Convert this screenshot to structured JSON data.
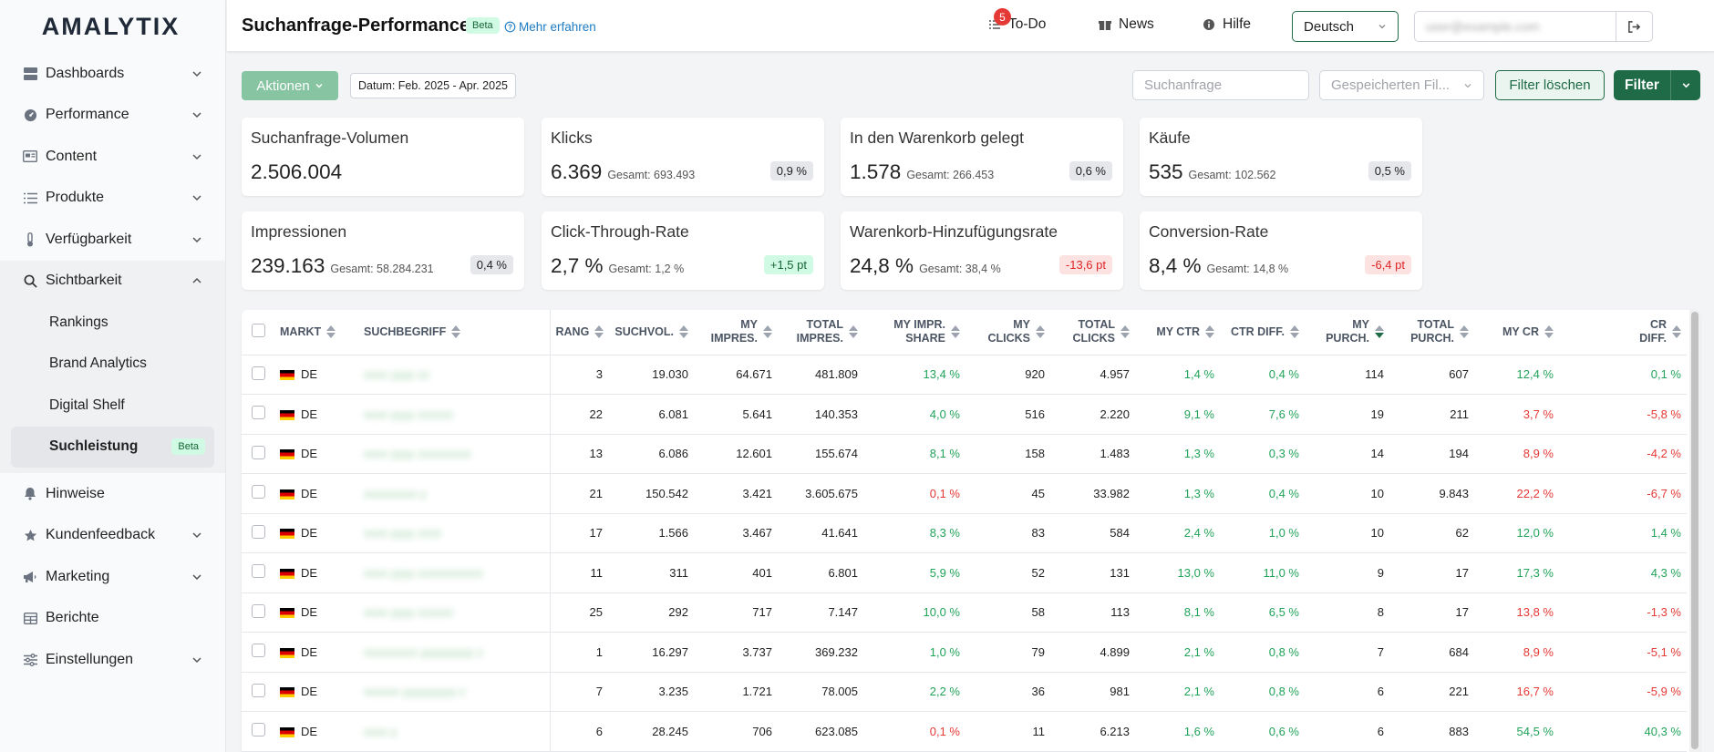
{
  "app": {
    "logo": "AMALYTIX",
    "page_title": "Suchanfrage-Performance",
    "beta": "Beta",
    "learn_more": "Mehr erfahren"
  },
  "topbar": {
    "todo_label": "To-Do",
    "todo_count": "5",
    "news_label": "News",
    "help_label": "Hilfe",
    "language": "Deutsch",
    "user_email": "user@example.com"
  },
  "sidebar": {
    "items": [
      {
        "label": "Dashboards",
        "icon": "dashboard-icon"
      },
      {
        "label": "Performance",
        "icon": "performance-icon"
      },
      {
        "label": "Content",
        "icon": "content-icon"
      },
      {
        "label": "Produkte",
        "icon": "list-icon"
      },
      {
        "label": "Verfügbarkeit",
        "icon": "thermometer-icon"
      },
      {
        "label": "Sichtbarkeit",
        "icon": "search-icon"
      }
    ],
    "sub_items": [
      {
        "label": "Rankings"
      },
      {
        "label": "Brand Analytics"
      },
      {
        "label": "Digital Shelf"
      },
      {
        "label": "Suchleistung",
        "badge": "Beta"
      }
    ],
    "bottom_items": [
      {
        "label": "Hinweise",
        "icon": "bell-icon"
      },
      {
        "label": "Kundenfeedback",
        "icon": "star-icon"
      },
      {
        "label": "Marketing",
        "icon": "megaphone-icon"
      },
      {
        "label": "Berichte",
        "icon": "table-icon"
      },
      {
        "label": "Einstellungen",
        "icon": "sliders-icon"
      }
    ]
  },
  "toolbar": {
    "actions_label": "Aktionen",
    "date_range": "Datum: Feb. 2025 - Apr. 2025",
    "search_placeholder": "Suchanfrage",
    "saved_filter_placeholder": "Gespeicherten Fil...",
    "clear_filter_label": "Filter löschen",
    "filter_label": "Filter"
  },
  "kpis": [
    {
      "title": "Suchanfrage-Volumen",
      "value": "2.506.004",
      "total": "",
      "badge": "",
      "badge_type": ""
    },
    {
      "title": "Klicks",
      "value": "6.369",
      "total": "Gesamt: 693.493",
      "badge": "0,9 %",
      "badge_type": ""
    },
    {
      "title": "In den Warenkorb gelegt",
      "value": "1.578",
      "total": "Gesamt: 266.453",
      "badge": "0,6 %",
      "badge_type": ""
    },
    {
      "title": "Käufe",
      "value": "535",
      "total": "Gesamt: 102.562",
      "badge": "0,5 %",
      "badge_type": ""
    },
    {
      "title": "Impressionen",
      "value": "239.163",
      "total": "Gesamt: 58.284.231",
      "badge": "0,4 %",
      "badge_type": ""
    },
    {
      "title": "Click-Through-Rate",
      "value": "2,7 %",
      "total": "Gesamt: 1,2 %",
      "badge": "+1,5 pt",
      "badge_type": "pos"
    },
    {
      "title": "Warenkorb-Hinzufügungsrate",
      "value": "24,8 %",
      "total": "Gesamt: 38,4 %",
      "badge": "-13,6 pt",
      "badge_type": "neg"
    },
    {
      "title": "Conversion-Rate",
      "value": "8,4 %",
      "total": "Gesamt: 14,8 %",
      "badge": "-6,4 pt",
      "badge_type": "neg"
    }
  ],
  "table": {
    "headers": [
      {
        "label": "MARKT",
        "sub": ""
      },
      {
        "label": "SUCHBEGRIFF",
        "sub": ""
      },
      {
        "label": "RANG",
        "sub": ""
      },
      {
        "label": "SUCHVOL.",
        "sub": ""
      },
      {
        "label": "MY",
        "sub": "IMPRES."
      },
      {
        "label": "TOTAL",
        "sub": "IMPRES."
      },
      {
        "label": "MY IMPR.",
        "sub": "SHARE"
      },
      {
        "label": "MY",
        "sub": "CLICKS"
      },
      {
        "label": "TOTAL",
        "sub": "CLICKS"
      },
      {
        "label": "MY CTR",
        "sub": ""
      },
      {
        "label": "CTR DIFF.",
        "sub": ""
      },
      {
        "label": "MY",
        "sub": "PURCH."
      },
      {
        "label": "TOTAL",
        "sub": "PURCH."
      },
      {
        "label": "MY CR",
        "sub": ""
      },
      {
        "label": "CR",
        "sub": "DIFF."
      }
    ],
    "rows": [
      {
        "market": "DE",
        "term": "xxxx yyyy zz",
        "rank": "3",
        "vol": "19.030",
        "my_impr": "64.671",
        "tot_impr": "481.809",
        "share": "13,4 %",
        "share_c": "pos",
        "my_clicks": "920",
        "tot_clicks": "4.957",
        "ctr": "1,4 %",
        "ctr_c": "pos",
        "ctr_diff": "0,4 %",
        "ctr_diff_c": "pos",
        "my_purch": "114",
        "tot_purch": "607",
        "cr": "12,4 %",
        "cr_c": "pos",
        "cr_diff": "0,1 %",
        "cr_diff_c": "pos"
      },
      {
        "market": "DE",
        "term": "xxxx yyyy zzzzzz",
        "rank": "22",
        "vol": "6.081",
        "my_impr": "5.641",
        "tot_impr": "140.353",
        "share": "4,0 %",
        "share_c": "pos",
        "my_clicks": "516",
        "tot_clicks": "2.220",
        "ctr": "9,1 %",
        "ctr_c": "pos",
        "ctr_diff": "7,6 %",
        "ctr_diff_c": "pos",
        "my_purch": "19",
        "tot_purch": "211",
        "cr": "3,7 %",
        "cr_c": "neg",
        "cr_diff": "-5,8 %",
        "cr_diff_c": "neg"
      },
      {
        "market": "DE",
        "term": "xxxx yyyy zzzzzzzzz",
        "rank": "13",
        "vol": "6.086",
        "my_impr": "12.601",
        "tot_impr": "155.674",
        "share": "8,1 %",
        "share_c": "pos",
        "my_clicks": "158",
        "tot_clicks": "1.483",
        "ctr": "1,3 %",
        "ctr_c": "pos",
        "ctr_diff": "0,3 %",
        "ctr_diff_c": "pos",
        "my_purch": "14",
        "tot_purch": "194",
        "cr": "8,9 %",
        "cr_c": "neg",
        "cr_diff": "-4,2 %",
        "cr_diff_c": "neg"
      },
      {
        "market": "DE",
        "term": "xxxxxxxxx y",
        "rank": "21",
        "vol": "150.542",
        "my_impr": "3.421",
        "tot_impr": "3.605.675",
        "share": "0,1 %",
        "share_c": "neg",
        "my_clicks": "45",
        "tot_clicks": "33.982",
        "ctr": "1,3 %",
        "ctr_c": "pos",
        "ctr_diff": "0,4 %",
        "ctr_diff_c": "pos",
        "my_purch": "10",
        "tot_purch": "9.843",
        "cr": "22,2 %",
        "cr_c": "neg",
        "cr_diff": "-6,7 %",
        "cr_diff_c": "neg"
      },
      {
        "market": "DE",
        "term": "xxxx yyyy zzzz",
        "rank": "17",
        "vol": "1.566",
        "my_impr": "3.467",
        "tot_impr": "41.641",
        "share": "8,3 %",
        "share_c": "pos",
        "my_clicks": "83",
        "tot_clicks": "584",
        "ctr": "2,4 %",
        "ctr_c": "pos",
        "ctr_diff": "1,0 %",
        "ctr_diff_c": "pos",
        "my_purch": "10",
        "tot_purch": "62",
        "cr": "12,0 %",
        "cr_c": "pos",
        "cr_diff": "1,4 %",
        "cr_diff_c": "pos"
      },
      {
        "market": "DE",
        "term": "xxxx yyyy zzzzzzzzzzz",
        "rank": "11",
        "vol": "311",
        "my_impr": "401",
        "tot_impr": "6.801",
        "share": "5,9 %",
        "share_c": "pos",
        "my_clicks": "52",
        "tot_clicks": "131",
        "ctr": "13,0 %",
        "ctr_c": "pos",
        "ctr_diff": "11,0 %",
        "ctr_diff_c": "pos",
        "my_purch": "9",
        "tot_purch": "17",
        "cr": "17,3 %",
        "cr_c": "pos",
        "cr_diff": "4,3 %",
        "cr_diff_c": "pos"
      },
      {
        "market": "DE",
        "term": "xxxx yyyy zzzzzz",
        "rank": "25",
        "vol": "292",
        "my_impr": "717",
        "tot_impr": "7.147",
        "share": "10,0 %",
        "share_c": "pos",
        "my_clicks": "58",
        "tot_clicks": "113",
        "ctr": "8,1 %",
        "ctr_c": "pos",
        "ctr_diff": "6,5 %",
        "ctr_diff_c": "pos",
        "my_purch": "8",
        "tot_purch": "17",
        "cr": "13,8 %",
        "cr_c": "neg",
        "cr_diff": "-1,3 %",
        "cr_diff_c": "neg"
      },
      {
        "market": "DE",
        "term": "xxxxxxxxx yyyyyyyyy z",
        "rank": "1",
        "vol": "16.297",
        "my_impr": "3.737",
        "tot_impr": "369.232",
        "share": "1,0 %",
        "share_c": "pos",
        "my_clicks": "79",
        "tot_clicks": "4.899",
        "ctr": "2,1 %",
        "ctr_c": "pos",
        "ctr_diff": "0,8 %",
        "ctr_diff_c": "pos",
        "my_purch": "7",
        "tot_purch": "684",
        "cr": "8,9 %",
        "cr_c": "neg",
        "cr_diff": "-5,1 %",
        "cr_diff_c": "neg"
      },
      {
        "market": "DE",
        "term": "xxxxxx yyyyyyyyy z",
        "rank": "7",
        "vol": "3.235",
        "my_impr": "1.721",
        "tot_impr": "78.005",
        "share": "2,2 %",
        "share_c": "pos",
        "my_clicks": "36",
        "tot_clicks": "981",
        "ctr": "2,1 %",
        "ctr_c": "pos",
        "ctr_diff": "0,8 %",
        "ctr_diff_c": "pos",
        "my_purch": "6",
        "tot_purch": "221",
        "cr": "16,7 %",
        "cr_c": "neg",
        "cr_diff": "-5,9 %",
        "cr_diff_c": "neg"
      },
      {
        "market": "DE",
        "term": "xxxx y",
        "rank": "6",
        "vol": "28.245",
        "my_impr": "706",
        "tot_impr": "623.085",
        "share": "0,1 %",
        "share_c": "neg",
        "my_clicks": "11",
        "tot_clicks": "6.213",
        "ctr": "1,6 %",
        "ctr_c": "pos",
        "ctr_diff": "0,6 %",
        "ctr_diff_c": "pos",
        "my_purch": "6",
        "tot_purch": "883",
        "cr": "54,5 %",
        "cr_c": "pos",
        "cr_diff": "40,3 %",
        "cr_diff_c": "pos"
      }
    ]
  },
  "colors": {
    "primary": "#1f6b47",
    "positive": "#22a35a",
    "negative": "#e53935",
    "link": "#1d7bc4"
  }
}
